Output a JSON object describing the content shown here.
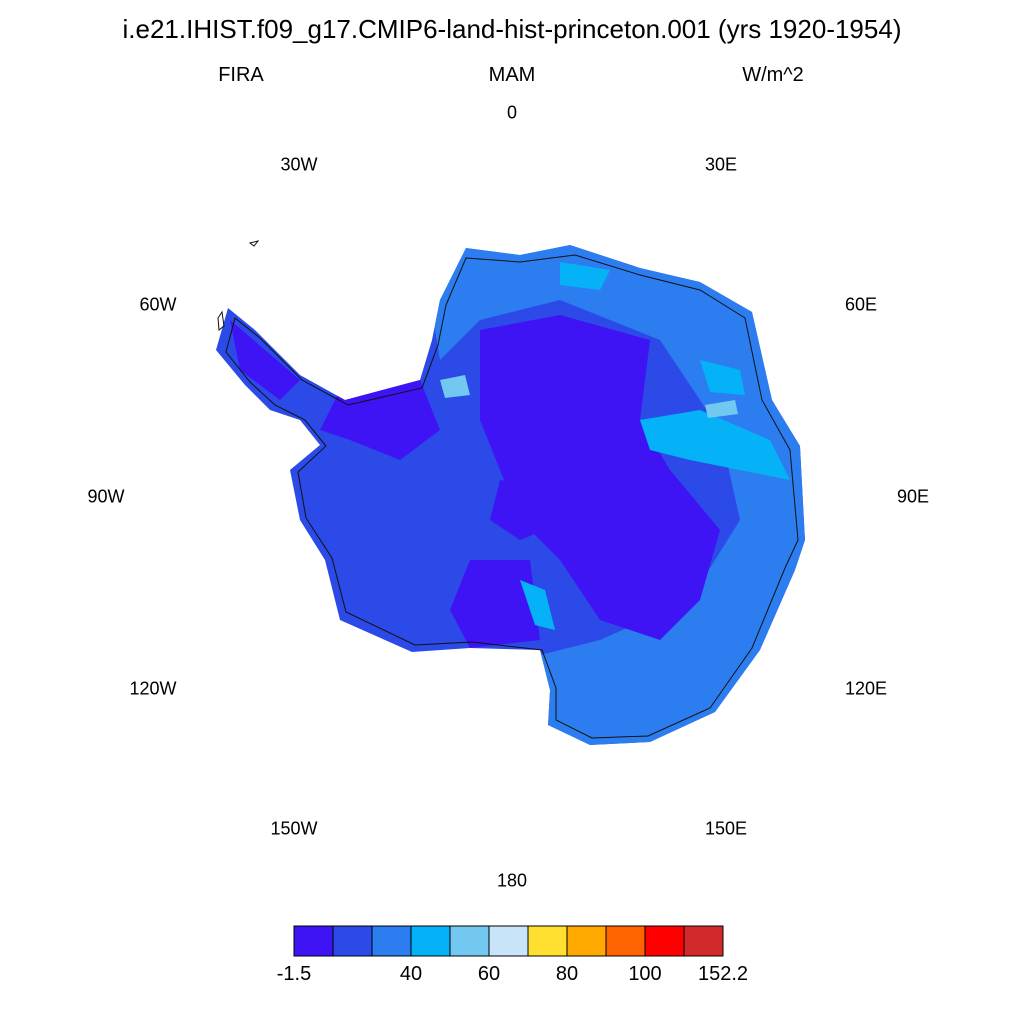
{
  "header": {
    "title": "i.e21.IHIST.f09_g17.CMIP6-land-hist-princeton.001 (yrs 1920-1954)",
    "variable": "FIRA",
    "season": "MAM",
    "units": "W/m^2"
  },
  "longitude_labels": {
    "lon_0": "0",
    "lon_30e": "30E",
    "lon_60e": "60E",
    "lon_90e": "90E",
    "lon_120e": "120E",
    "lon_150e": "150E",
    "lon_180": "180",
    "lon_150w": "150W",
    "lon_120w": "120W",
    "lon_90w": "90W",
    "lon_60w": "60W",
    "lon_30w": "30W"
  },
  "chart_data": {
    "type": "heatmap",
    "title": "i.e21.IHIST.f09_g17.CMIP6-land-hist-princeton.001 (yrs 1920-1954)",
    "variable": "FIRA",
    "season": "MAM",
    "units": "W/m^2",
    "projection": "south polar stereographic",
    "region": "Antarctica",
    "colorbar": {
      "colors": [
        "#3e14f4",
        "#2b4ae8",
        "#2c7ef0",
        "#05b2f8",
        "#72c8f0",
        "#c8e4f8",
        "#ffe030",
        "#ffa800",
        "#ff6400",
        "#ff0000",
        "#d22a2a"
      ],
      "tick_labels": [
        "-1.5",
        "40",
        "60",
        "80",
        "100",
        "152.2"
      ]
    }
  }
}
